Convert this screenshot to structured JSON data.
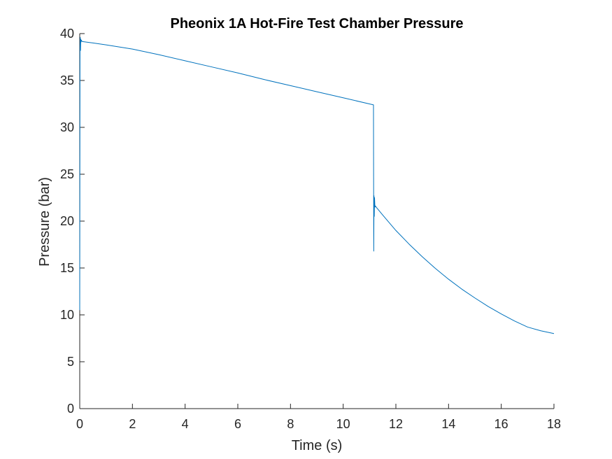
{
  "chart_data": {
    "type": "line",
    "title": "Pheonix 1A Hot-Fire Test Chamber Pressure",
    "xlabel": "Time (s)",
    "ylabel": "Pressure (bar)",
    "xlim": [
      0,
      18
    ],
    "ylim": [
      0,
      40
    ],
    "xticks": [
      0,
      2,
      4,
      6,
      8,
      10,
      12,
      14,
      16,
      18
    ],
    "yticks": [
      0,
      5,
      10,
      15,
      20,
      25,
      30,
      35,
      40
    ],
    "grid": false,
    "legend": "none",
    "series": [
      {
        "color": "#0072BD",
        "x": [
          0,
          0.01,
          0.02,
          0.03,
          0.04,
          0.05,
          0.06,
          0.08,
          0.1,
          0.5,
          1,
          2,
          3,
          4,
          5,
          6,
          7,
          8,
          9,
          10,
          11.15,
          11.16,
          11.17,
          11.18,
          11.19,
          11.2,
          11.21,
          11.23,
          11.25,
          11.5,
          12,
          12.5,
          13,
          13.5,
          14,
          14.5,
          15,
          15.5,
          16,
          16.5,
          17,
          17.5,
          18
        ],
        "y": [
          10.5,
          38.5,
          39.6,
          38.2,
          39.4,
          39.1,
          39.3,
          39.2,
          39.15,
          39.0,
          38.8,
          38.35,
          37.75,
          37.1,
          36.45,
          35.8,
          35.1,
          34.45,
          33.8,
          33.15,
          32.4,
          16.8,
          22.7,
          20.5,
          22.5,
          21.8,
          21.5,
          21.6,
          21.5,
          20.65,
          19.0,
          17.55,
          16.2,
          14.95,
          13.8,
          12.75,
          11.8,
          10.9,
          10.1,
          9.35,
          8.7,
          8.3,
          8.0
        ]
      }
    ]
  }
}
